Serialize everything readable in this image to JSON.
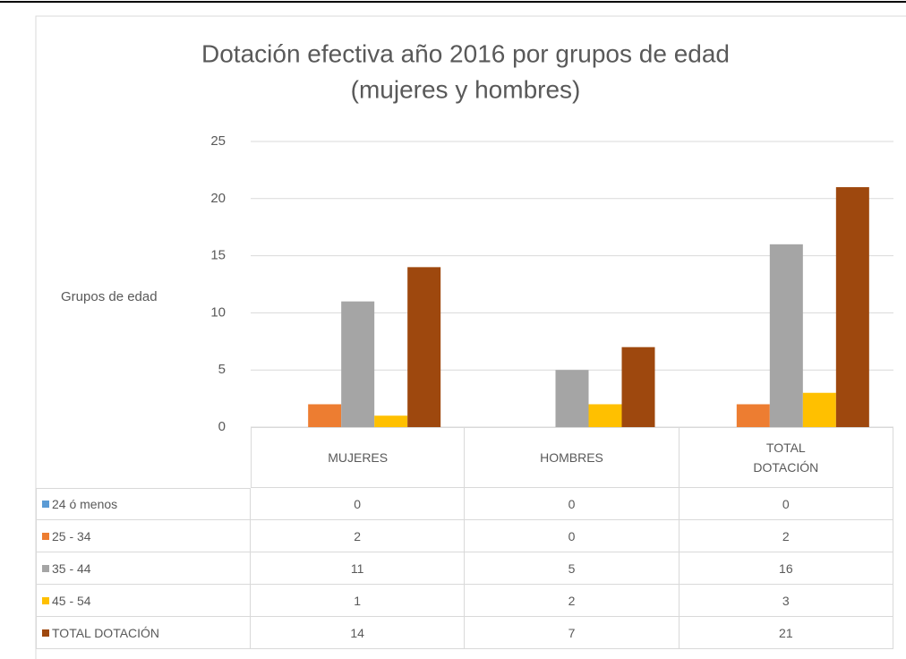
{
  "chart_data": {
    "type": "bar",
    "title": "Dotación efectiva año 2016 por grupos de edad",
    "subtitle": "(mujeres y hombres)",
    "y_label": "Grupos de edad",
    "categories": [
      "MUJERES",
      "HOMBRES",
      "TOTAL DOTACIÓN"
    ],
    "series": [
      {
        "name": "24 ó menos",
        "color": "#5b9bd5",
        "values": [
          0,
          0,
          0
        ]
      },
      {
        "name": "25 - 34",
        "color": "#ed7d31",
        "values": [
          2,
          0,
          2
        ]
      },
      {
        "name": "35 - 44",
        "color": "#a5a5a5",
        "values": [
          11,
          5,
          16
        ]
      },
      {
        "name": "45 - 54",
        "color": "#ffc000",
        "values": [
          1,
          2,
          3
        ]
      },
      {
        "name": "TOTAL DOTACIÓN",
        "color": "#9e480e",
        "values": [
          14,
          7,
          21
        ]
      }
    ],
    "ylim": [
      0,
      25
    ],
    "yticks": [
      0,
      5,
      10,
      15,
      20,
      25
    ],
    "grid": true
  }
}
